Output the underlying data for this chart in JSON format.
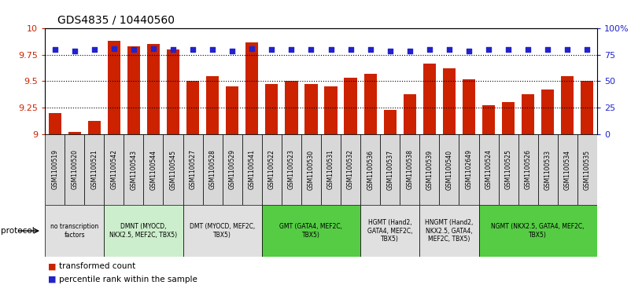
{
  "title": "GDS4835 / 10440560",
  "samples": [
    "GSM1100519",
    "GSM1100520",
    "GSM1100521",
    "GSM1100542",
    "GSM1100543",
    "GSM1100544",
    "GSM1100545",
    "GSM1100527",
    "GSM1100528",
    "GSM1100529",
    "GSM1100541",
    "GSM1100522",
    "GSM1100523",
    "GSM1100530",
    "GSM1100531",
    "GSM1100532",
    "GSM1100536",
    "GSM1100537",
    "GSM1100538",
    "GSM1100539",
    "GSM1100540",
    "GSM1102649",
    "GSM1100524",
    "GSM1100525",
    "GSM1100526",
    "GSM1100533",
    "GSM1100534",
    "GSM1100535"
  ],
  "bar_values": [
    9.2,
    9.02,
    9.12,
    9.88,
    9.83,
    9.85,
    9.8,
    9.5,
    9.55,
    9.45,
    9.87,
    9.47,
    9.5,
    9.47,
    9.45,
    9.53,
    9.57,
    9.23,
    9.38,
    9.67,
    9.62,
    9.52,
    9.27,
    9.3,
    9.38,
    9.42,
    9.55,
    9.5
  ],
  "percentile_values": [
    80,
    79,
    80,
    81,
    80,
    81,
    80,
    80,
    80,
    79,
    81,
    80,
    80,
    80,
    80,
    80,
    80,
    79,
    79,
    80,
    80,
    79,
    80,
    80,
    80,
    80,
    80,
    80
  ],
  "protocols": [
    {
      "label": "no transcription\nfactors",
      "start": 0,
      "end": 3,
      "color": "#e0e0e0"
    },
    {
      "label": "DMNT (MYOCD,\nNKX2.5, MEF2C, TBX5)",
      "start": 3,
      "end": 7,
      "color": "#cceecc"
    },
    {
      "label": "DMT (MYOCD, MEF2C,\nTBX5)",
      "start": 7,
      "end": 11,
      "color": "#e0e0e0"
    },
    {
      "label": "GMT (GATA4, MEF2C,\nTBX5)",
      "start": 11,
      "end": 16,
      "color": "#55cc44"
    },
    {
      "label": "HGMT (Hand2,\nGATA4, MEF2C,\nTBX5)",
      "start": 16,
      "end": 19,
      "color": "#e0e0e0"
    },
    {
      "label": "HNGMT (Hand2,\nNKX2.5, GATA4,\nMEF2C, TBX5)",
      "start": 19,
      "end": 22,
      "color": "#e0e0e0"
    },
    {
      "label": "NGMT (NKX2.5, GATA4, MEF2C,\nTBX5)",
      "start": 22,
      "end": 28,
      "color": "#55cc44"
    }
  ],
  "ylim_left": [
    9.0,
    10.0
  ],
  "ylim_right": [
    0,
    100
  ],
  "yticks_left": [
    9.0,
    9.25,
    9.5,
    9.75,
    10.0
  ],
  "yticks_left_labels": [
    "9",
    "9.25",
    "9.5",
    "9.75",
    "10"
  ],
  "yticks_right": [
    0,
    25,
    50,
    75,
    100
  ],
  "yticks_right_labels": [
    "0",
    "25",
    "50",
    "75",
    "100%"
  ],
  "bar_color": "#cc2200",
  "dot_color": "#2222cc",
  "legend_bar_label": "transformed count",
  "legend_dot_label": "percentile rank within the sample",
  "protocol_label": "protocol"
}
